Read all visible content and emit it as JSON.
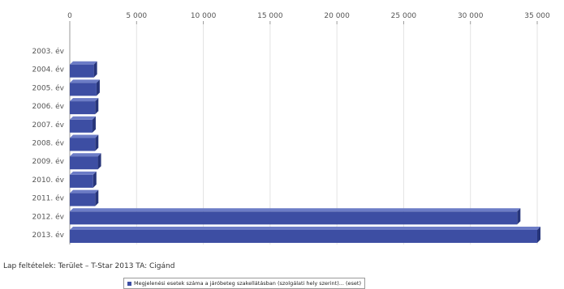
{
  "chart_data": {
    "type": "bar",
    "orientation": "horizontal",
    "categories": [
      "2003. év",
      "2004. év",
      "2005. év",
      "2006. év",
      "2007. év",
      "2008. év",
      "2009. év",
      "2010. év",
      "2011. év",
      "2012. év",
      "2013. év"
    ],
    "series": [
      {
        "name": "Megjelenési esetek száma a járóbeteg szakellátásban (szolgálati hely szerint)... (eset)",
        "values": [
          0,
          1800,
          2000,
          1900,
          1700,
          1900,
          2100,
          1750,
          1900,
          33500,
          35000
        ],
        "color": "#3d4ea3"
      }
    ],
    "xlim": [
      0,
      35000
    ],
    "x_ticks": [
      "0",
      "5 000",
      "10 000",
      "15 000",
      "20 000",
      "25 000",
      "30 000",
      "35 000"
    ],
    "x_tick_values": [
      0,
      5000,
      10000,
      15000,
      20000,
      25000,
      30000,
      35000
    ],
    "axis_position": "top",
    "legend_position": "bottom",
    "grid": true
  },
  "footer": {
    "conditions": "Lap feltételek: Terület – T-Star 2013 TA: Cigánd"
  },
  "legend": {
    "label": "Megjelenési esetek száma a járóbeteg szakellátásban (szolgálati hely szerint)... (eset)"
  }
}
